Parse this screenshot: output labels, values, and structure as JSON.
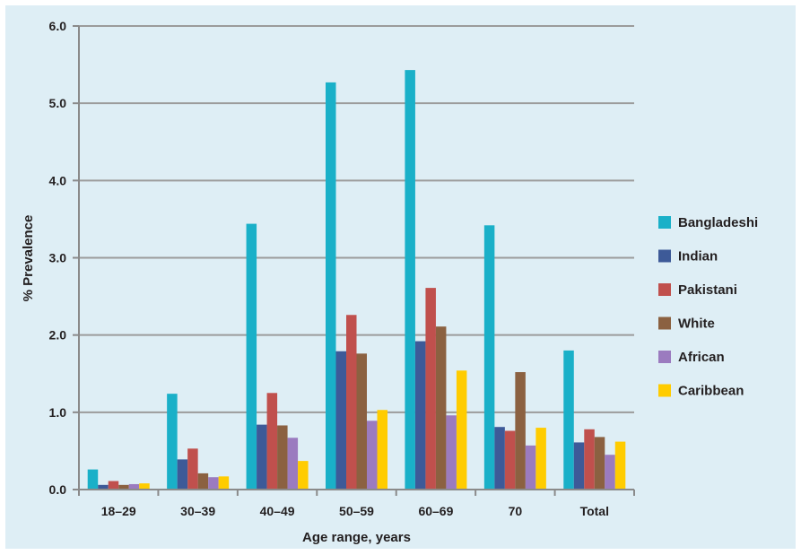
{
  "chart_data": {
    "type": "bar",
    "xlabel": "Age range, years",
    "ylabel": "% Prevalence",
    "ylim": [
      0,
      6
    ],
    "yticks": [
      "0.0",
      "1.0",
      "2.0",
      "3.0",
      "4.0",
      "5.0",
      "6.0"
    ],
    "grid": true,
    "legend_position": "right",
    "categories": [
      "18–29",
      "30–39",
      "40–49",
      "50–59",
      "60–69",
      "70",
      "Total"
    ],
    "series": [
      {
        "name": "Bangladeshi",
        "color": "#1ab0c8",
        "values": [
          0.26,
          1.24,
          3.44,
          5.27,
          5.43,
          3.42,
          1.8
        ]
      },
      {
        "name": "Indian",
        "color": "#3d5a98",
        "values": [
          0.06,
          0.39,
          0.84,
          1.79,
          1.92,
          0.81,
          0.61
        ]
      },
      {
        "name": "Pakistani",
        "color": "#c0504d",
        "values": [
          0.11,
          0.53,
          1.25,
          2.26,
          2.61,
          0.76,
          0.78
        ]
      },
      {
        "name": "White",
        "color": "#8b6141",
        "values": [
          0.06,
          0.21,
          0.83,
          1.76,
          2.11,
          1.52,
          0.68
        ]
      },
      {
        "name": "African",
        "color": "#9b7bbf",
        "values": [
          0.07,
          0.16,
          0.67,
          0.89,
          0.96,
          0.57,
          0.45
        ]
      },
      {
        "name": "Caribbean",
        "color": "#ffcc00",
        "values": [
          0.08,
          0.17,
          0.37,
          1.03,
          1.54,
          0.8,
          0.62
        ]
      }
    ]
  }
}
